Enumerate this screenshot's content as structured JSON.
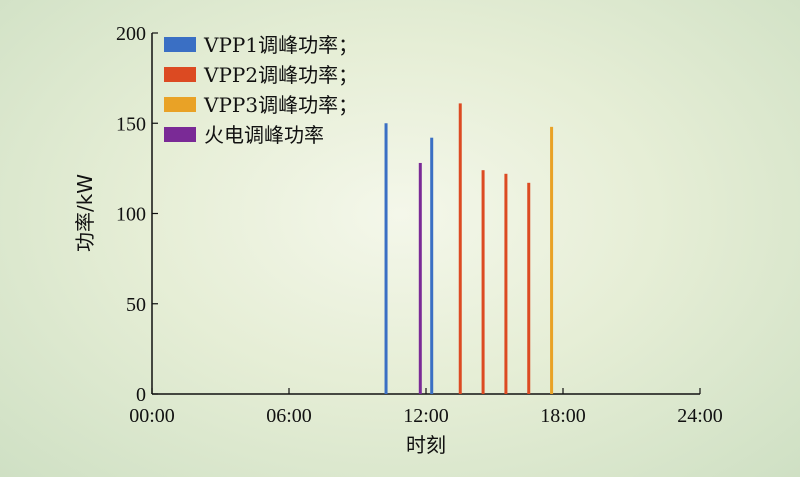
{
  "chart_data": {
    "type": "bar",
    "title": "",
    "xlabel": "时刻",
    "ylabel": "功率/kW",
    "xlim": [
      "00:00",
      "24:00"
    ],
    "ylim": [
      0,
      200
    ],
    "xticks": [
      "00:00",
      "06:00",
      "12:00",
      "18:00",
      "24:00"
    ],
    "yticks": [
      "0",
      "50",
      "100",
      "150",
      "200"
    ],
    "grid": false,
    "legend_position": "top-left",
    "series": [
      {
        "name": "VPP1调峰功率；",
        "color": "#3a6fc4",
        "points": [
          {
            "x": "10:15",
            "y": 150
          },
          {
            "x": "12:15",
            "y": 142
          }
        ]
      },
      {
        "name": "VPP2调峰功率；",
        "color": "#dc4a22",
        "points": [
          {
            "x": "13:30",
            "y": 161
          },
          {
            "x": "14:30",
            "y": 124
          },
          {
            "x": "15:30",
            "y": 122
          },
          {
            "x": "16:30",
            "y": 117
          }
        ]
      },
      {
        "name": "VPP3调峰功率；",
        "color": "#e9a226",
        "points": [
          {
            "x": "17:30",
            "y": 148
          }
        ]
      },
      {
        "name": "火电调峰功率",
        "color": "#7a2a96",
        "points": [
          {
            "x": "11:45",
            "y": 128
          }
        ]
      }
    ]
  }
}
